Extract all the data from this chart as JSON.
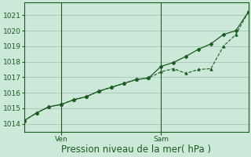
{
  "xlabel": "Pression niveau de la mer( hPa )",
  "bg_color": "#cce8d8",
  "line_color": "#1a5c20",
  "grid_color": "#a8cbb8",
  "spine_color": "#1a5c20",
  "ylim": [
    1013.5,
    1021.8
  ],
  "yticks": [
    1014,
    1015,
    1016,
    1017,
    1018,
    1019,
    1020,
    1021
  ],
  "xlim": [
    0,
    18
  ],
  "ven_x": 3,
  "sam_x": 11,
  "series1_x": [
    0,
    1,
    2,
    3,
    4,
    5,
    6,
    7,
    8,
    9,
    10,
    11,
    12,
    13,
    14,
    15,
    16,
    17,
    18
  ],
  "series1_y": [
    1014.2,
    1014.7,
    1015.1,
    1015.25,
    1015.55,
    1015.75,
    1016.1,
    1016.35,
    1016.6,
    1016.85,
    1016.95,
    1017.35,
    1017.55,
    1017.25,
    1017.5,
    1017.55,
    1019.0,
    1019.75,
    1021.2
  ],
  "series2_x": [
    0,
    1,
    2,
    3,
    4,
    5,
    6,
    7,
    8,
    9,
    10,
    11,
    12,
    13,
    14,
    15,
    16,
    17,
    18
  ],
  "series2_y": [
    1014.2,
    1014.7,
    1015.1,
    1015.25,
    1015.55,
    1015.75,
    1016.1,
    1016.35,
    1016.6,
    1016.85,
    1016.95,
    1017.7,
    1017.95,
    1018.35,
    1018.8,
    1019.15,
    1019.75,
    1020.0,
    1021.2
  ],
  "xlabel_fontsize": 8.5,
  "tick_fontsize": 6.5,
  "ytick_fontsize": 6.5
}
